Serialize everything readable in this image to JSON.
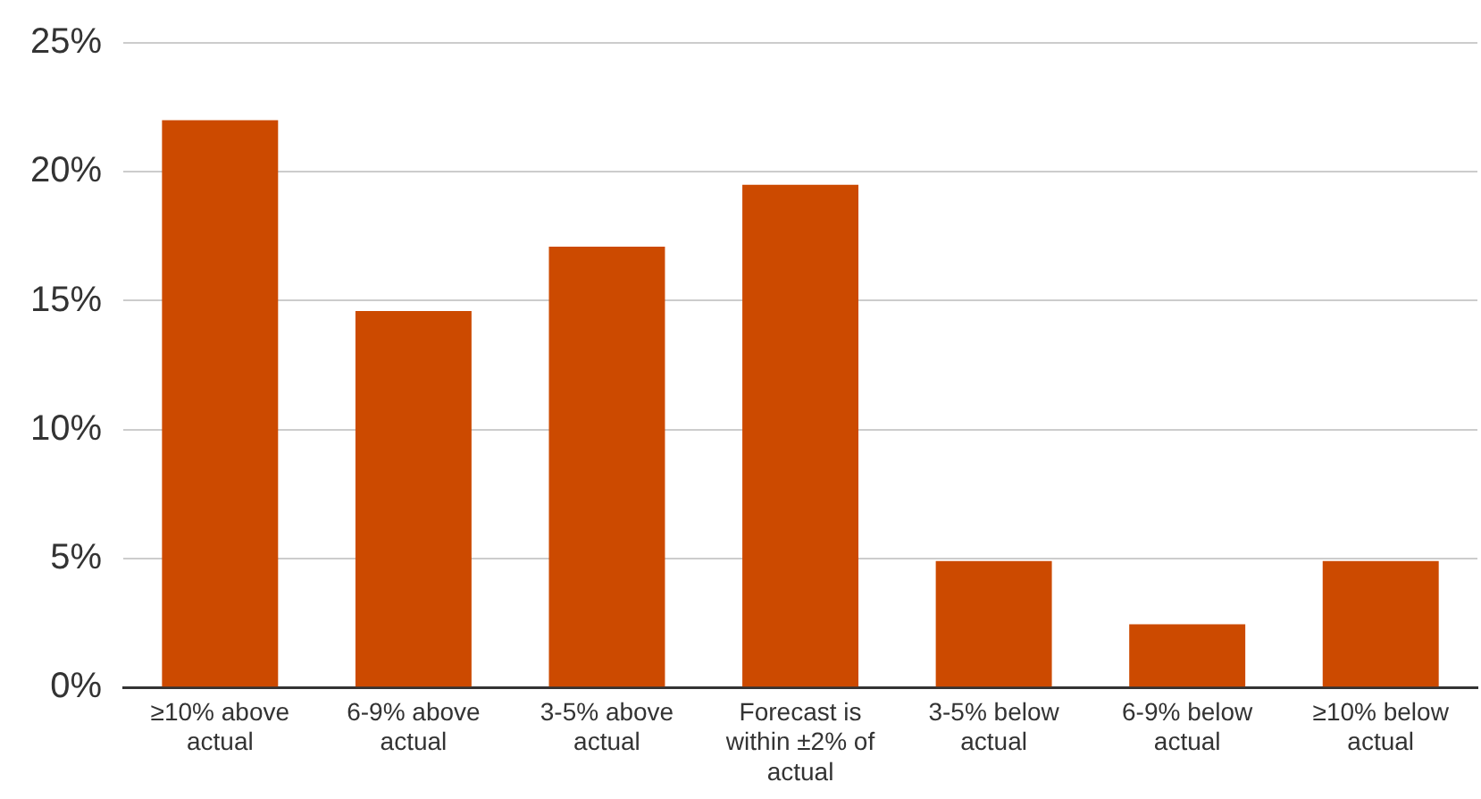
{
  "chart_data": {
    "type": "bar",
    "categories": [
      "≥10% above actual",
      "6-9% above actual",
      "3-5% above actual",
      "Forecast is within ±2% of actual",
      "3-5% below actual",
      "6-9% below actual",
      "≥10% below actual"
    ],
    "values": [
      22,
      14.6,
      17.1,
      19.5,
      4.9,
      2.45,
      4.9
    ],
    "color": "#cc4a00",
    "ylim": [
      0,
      25
    ],
    "yticks": [
      {
        "value": 0,
        "label": "0%"
      },
      {
        "value": 5,
        "label": "5%"
      },
      {
        "value": 10,
        "label": "10%"
      },
      {
        "value": 15,
        "label": "15%"
      },
      {
        "value": 20,
        "label": "20%"
      },
      {
        "value": 25,
        "label": "25%"
      }
    ],
    "grid": "y",
    "legend": false
  }
}
